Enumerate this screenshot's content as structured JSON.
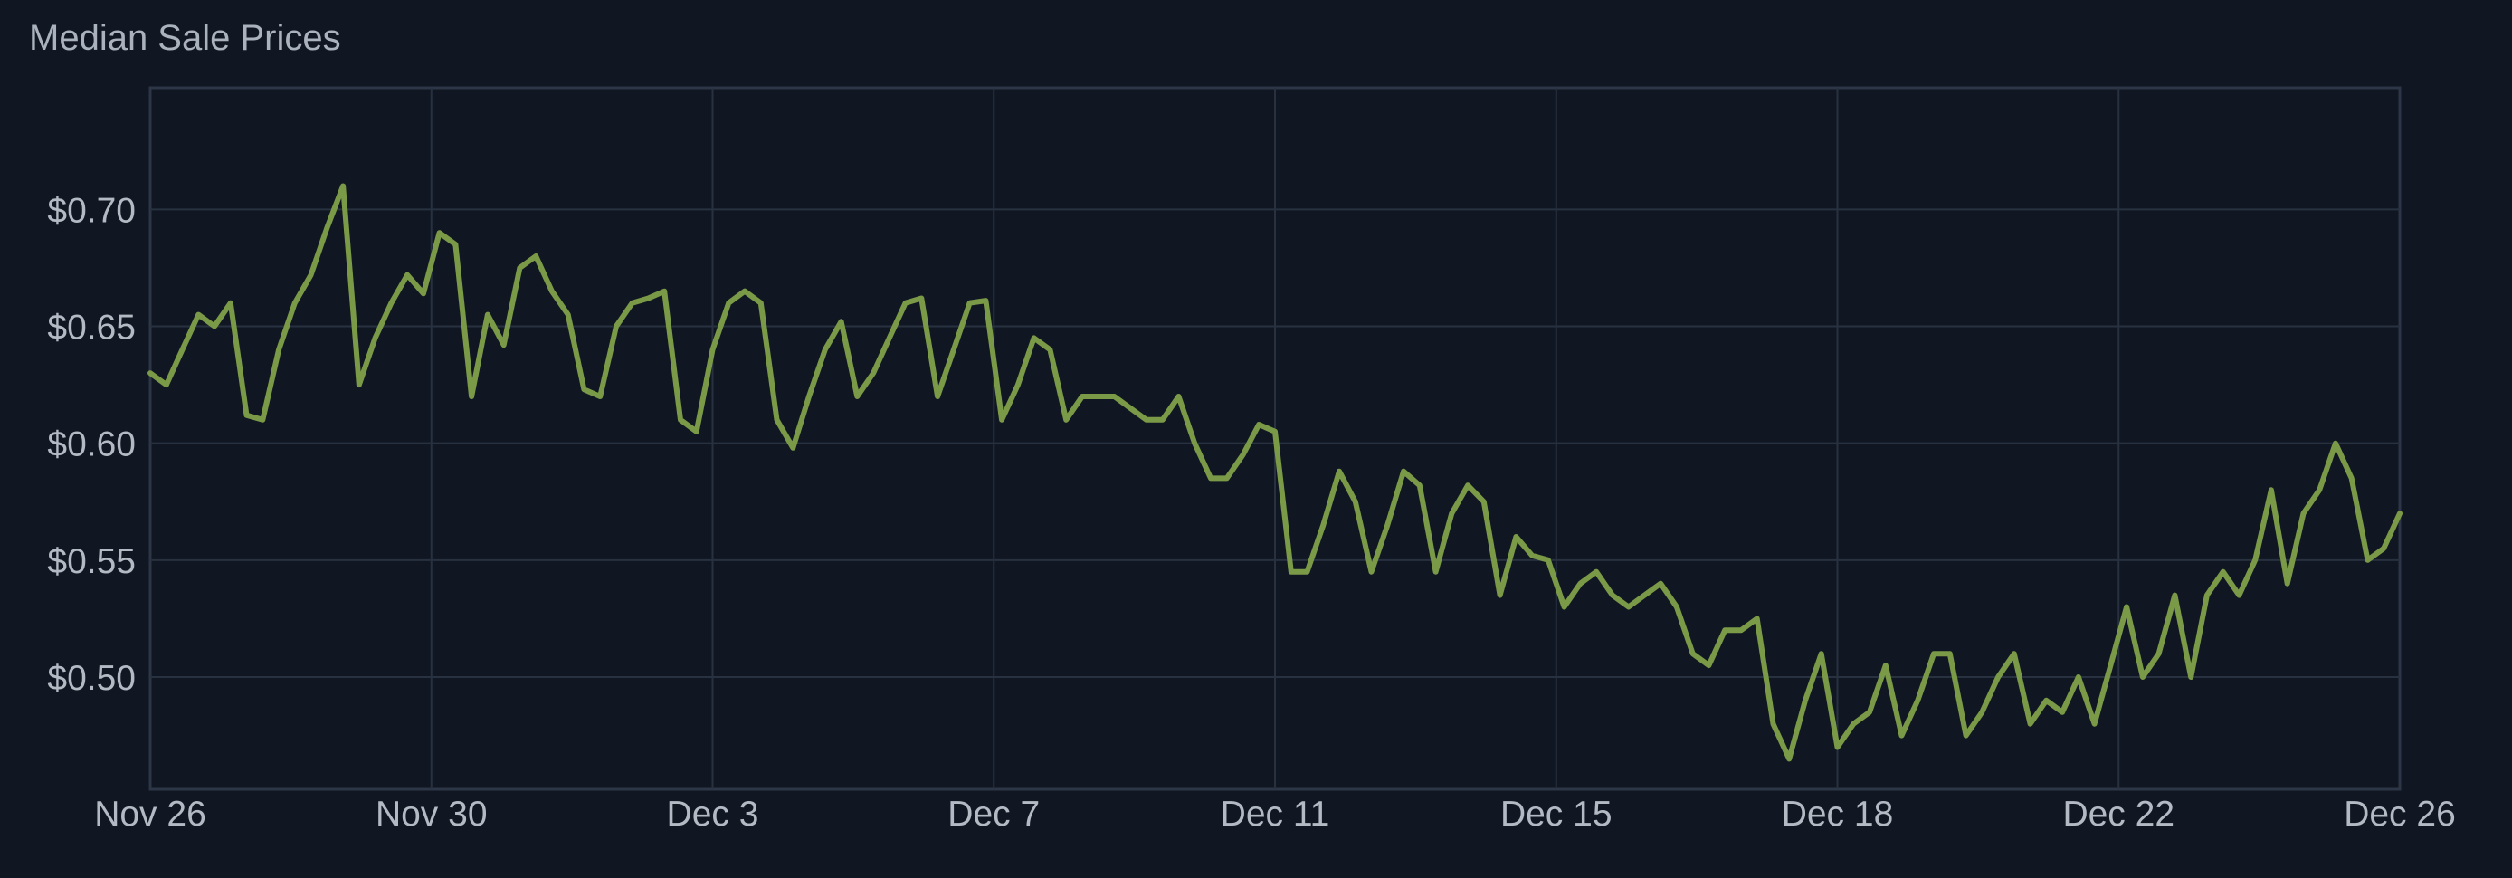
{
  "chart_data": {
    "type": "line",
    "title": "Median Sale Prices",
    "xlabel": "",
    "ylabel": "",
    "x_ticks": [
      "Nov 26",
      "Nov 30",
      "Dec 3",
      "Dec 7",
      "Dec 11",
      "Dec 15",
      "Dec 18",
      "Dec 22",
      "Dec 26"
    ],
    "y_ticks": [
      "$0.50",
      "$0.55",
      "$0.60",
      "$0.65",
      "$0.70"
    ],
    "y_tick_values": [
      0.5,
      0.55,
      0.6,
      0.65,
      0.7
    ],
    "ylim": [
      0.452,
      0.752
    ],
    "xlim": [
      "Nov 26",
      "Dec 26"
    ],
    "grid": true,
    "legend": "none",
    "line_color": "#7a9a47",
    "series": [
      {
        "points": [
          [
            "Nov 26",
            0.63
          ],
          [
            "Nov 26",
            0.625
          ],
          [
            "Nov 26",
            0.64
          ],
          [
            "Nov 27",
            0.655
          ],
          [
            "Nov 27",
            0.65
          ],
          [
            "Nov 27",
            0.66
          ],
          [
            "Nov 27",
            0.612
          ],
          [
            "Nov 27",
            0.61
          ],
          [
            "Nov 27",
            0.64
          ],
          [
            "Nov 28",
            0.66
          ],
          [
            "Nov 28",
            0.672
          ],
          [
            "Nov 28",
            0.692
          ],
          [
            "Nov 28",
            0.71
          ],
          [
            "Nov 28",
            0.625
          ],
          [
            "Nov 28",
            0.645
          ],
          [
            "Nov 29",
            0.66
          ],
          [
            "Nov 29",
            0.672
          ],
          [
            "Nov 29",
            0.664
          ],
          [
            "Nov 29",
            0.69
          ],
          [
            "Nov 29",
            0.685
          ],
          [
            "Nov 29",
            0.62
          ],
          [
            "Nov 29",
            0.655
          ],
          [
            "Nov 29",
            0.642
          ],
          [
            "Nov 29",
            0.675
          ],
          [
            "Nov 30",
            0.68
          ],
          [
            "Nov 30",
            0.665
          ],
          [
            "Nov 30",
            0.655
          ],
          [
            "Nov 30",
            0.623
          ],
          [
            "Nov 30",
            0.62
          ],
          [
            "Nov 30",
            0.65
          ],
          [
            "Nov 30",
            0.66
          ],
          [
            "Dec 1",
            0.662
          ],
          [
            "Dec 1",
            0.665
          ],
          [
            "Dec 1",
            0.61
          ],
          [
            "Dec 1",
            0.605
          ],
          [
            "Dec 1",
            0.64
          ],
          [
            "Dec 1",
            0.66
          ],
          [
            "Dec 1",
            0.665
          ],
          [
            "Dec 1",
            0.66
          ],
          [
            "Dec 2",
            0.61
          ],
          [
            "Dec 2",
            0.598
          ],
          [
            "Dec 2",
            0.62
          ],
          [
            "Dec 2",
            0.64
          ],
          [
            "Dec 2",
            0.652
          ],
          [
            "Dec 2",
            0.62
          ],
          [
            "Dec 2",
            0.63
          ],
          [
            "Dec 3",
            0.645
          ],
          [
            "Dec 3",
            0.66
          ],
          [
            "Dec 3",
            0.662
          ],
          [
            "Dec 3",
            0.62
          ],
          [
            "Dec 3",
            0.64
          ],
          [
            "Dec 3",
            0.66
          ],
          [
            "Dec 4",
            0.661
          ],
          [
            "Dec 4",
            0.61
          ],
          [
            "Dec 4",
            0.625
          ],
          [
            "Dec 4",
            0.645
          ],
          [
            "Dec 4",
            0.64
          ],
          [
            "Dec 4",
            0.61
          ],
          [
            "Dec 4",
            0.62
          ],
          [
            "Dec 5",
            0.62
          ],
          [
            "Dec 5",
            0.62
          ],
          [
            "Dec 5",
            0.615
          ],
          [
            "Dec 6",
            0.61
          ],
          [
            "Dec 6",
            0.61
          ],
          [
            "Dec 6",
            0.62
          ],
          [
            "Dec 6",
            0.6
          ],
          [
            "Dec 6",
            0.585
          ],
          [
            "Dec 7",
            0.585
          ],
          [
            "Dec 7",
            0.595
          ],
          [
            "Dec 7",
            0.608
          ],
          [
            "Dec 8",
            0.605
          ],
          [
            "Dec 8",
            0.545
          ],
          [
            "Dec 8",
            0.545
          ],
          [
            "Dec 8",
            0.565
          ],
          [
            "Dec 8",
            0.588
          ],
          [
            "Dec 9",
            0.575
          ],
          [
            "Dec 9",
            0.545
          ],
          [
            "Dec 9",
            0.565
          ],
          [
            "Dec 9",
            0.588
          ],
          [
            "Dec 10",
            0.582
          ],
          [
            "Dec 10",
            0.545
          ],
          [
            "Dec 10",
            0.57
          ],
          [
            "Dec 10",
            0.582
          ],
          [
            "Dec 10",
            0.575
          ],
          [
            "Dec 11",
            0.535
          ],
          [
            "Dec 11",
            0.56
          ],
          [
            "Dec 11",
            0.552
          ],
          [
            "Dec 11",
            0.55
          ],
          [
            "Dec 12",
            0.53
          ],
          [
            "Dec 12",
            0.54
          ],
          [
            "Dec 12",
            0.545
          ],
          [
            "Dec 12",
            0.535
          ],
          [
            "Dec 13",
            0.53
          ],
          [
            "Dec 13",
            0.535
          ],
          [
            "Dec 13",
            0.54
          ],
          [
            "Dec 14",
            0.53
          ],
          [
            "Dec 14",
            0.51
          ],
          [
            "Dec 14",
            0.505
          ],
          [
            "Dec 14",
            0.52
          ],
          [
            "Dec 14",
            0.52
          ],
          [
            "Dec 15",
            0.525
          ],
          [
            "Dec 15",
            0.48
          ],
          [
            "Dec 15",
            0.465
          ],
          [
            "Dec 16",
            0.49
          ],
          [
            "Dec 16",
            0.51
          ],
          [
            "Dec 16",
            0.47
          ],
          [
            "Dec 16",
            0.48
          ],
          [
            "Dec 16",
            0.485
          ],
          [
            "Dec 17",
            0.505
          ],
          [
            "Dec 17",
            0.475
          ],
          [
            "Dec 17",
            0.49
          ],
          [
            "Dec 17",
            0.51
          ],
          [
            "Dec 18",
            0.51
          ],
          [
            "Dec 18",
            0.475
          ],
          [
            "Dec 18",
            0.485
          ],
          [
            "Dec 18",
            0.5
          ],
          [
            "Dec 19",
            0.51
          ],
          [
            "Dec 19",
            0.48
          ],
          [
            "Dec 19",
            0.49
          ],
          [
            "Dec 20",
            0.485
          ],
          [
            "Dec 20",
            0.5
          ],
          [
            "Dec 20",
            0.48
          ],
          [
            "Dec 20",
            0.505
          ],
          [
            "Dec 21",
            0.53
          ],
          [
            "Dec 21",
            0.5
          ],
          [
            "Dec 21",
            0.51
          ],
          [
            "Dec 22",
            0.535
          ],
          [
            "Dec 22",
            0.5
          ],
          [
            "Dec 22",
            0.535
          ],
          [
            "Dec 23",
            0.545
          ],
          [
            "Dec 23",
            0.535
          ],
          [
            "Dec 23",
            0.55
          ],
          [
            "Dec 24",
            0.58
          ],
          [
            "Dec 24",
            0.54
          ],
          [
            "Dec 24",
            0.57
          ],
          [
            "Dec 25",
            0.58
          ],
          [
            "Dec 25",
            0.6
          ],
          [
            "Dec 25",
            0.585
          ],
          [
            "Dec 25",
            0.55
          ],
          [
            "Dec 26",
            0.555
          ],
          [
            "Dec 26",
            0.57
          ]
        ],
        "values": [
          0.63,
          0.625,
          0.64,
          0.655,
          0.65,
          0.66,
          0.612,
          0.61,
          0.64,
          0.66,
          0.672,
          0.692,
          0.71,
          0.625,
          0.645,
          0.66,
          0.672,
          0.664,
          0.69,
          0.685,
          0.62,
          0.655,
          0.642,
          0.675,
          0.68,
          0.665,
          0.655,
          0.623,
          0.62,
          0.65,
          0.66,
          0.662,
          0.665,
          0.61,
          0.605,
          0.64,
          0.66,
          0.665,
          0.66,
          0.61,
          0.598,
          0.62,
          0.64,
          0.652,
          0.62,
          0.63,
          0.645,
          0.66,
          0.662,
          0.62,
          0.64,
          0.66,
          0.661,
          0.61,
          0.625,
          0.645,
          0.64,
          0.61,
          0.62,
          0.62,
          0.62,
          0.615,
          0.61,
          0.61,
          0.62,
          0.6,
          0.585,
          0.585,
          0.595,
          0.608,
          0.605,
          0.545,
          0.545,
          0.565,
          0.588,
          0.575,
          0.545,
          0.565,
          0.588,
          0.582,
          0.545,
          0.57,
          0.582,
          0.575,
          0.535,
          0.56,
          0.552,
          0.55,
          0.53,
          0.54,
          0.545,
          0.535,
          0.53,
          0.535,
          0.54,
          0.53,
          0.51,
          0.505,
          0.52,
          0.52,
          0.525,
          0.48,
          0.465,
          0.49,
          0.51,
          0.47,
          0.48,
          0.485,
          0.505,
          0.475,
          0.49,
          0.51,
          0.51,
          0.475,
          0.485,
          0.5,
          0.51,
          0.48,
          0.49,
          0.485,
          0.5,
          0.48,
          0.505,
          0.53,
          0.5,
          0.51,
          0.535,
          0.5,
          0.535,
          0.545,
          0.535,
          0.55,
          0.58,
          0.54,
          0.57,
          0.58,
          0.6,
          0.585,
          0.55,
          0.555,
          0.57
        ]
      }
    ]
  }
}
